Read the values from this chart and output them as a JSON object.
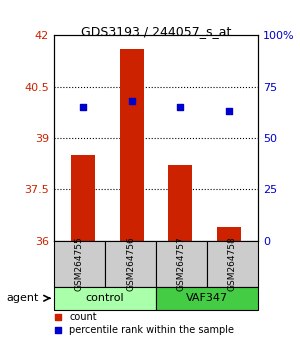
{
  "title": "GDS3193 / 244057_s_at",
  "samples": [
    "GSM264755",
    "GSM264756",
    "GSM264757",
    "GSM264758"
  ],
  "bar_values": [
    38.5,
    41.6,
    38.2,
    36.4
  ],
  "dot_values": [
    65,
    68,
    65,
    63
  ],
  "ylim_left": [
    36,
    42
  ],
  "ylim_right": [
    0,
    100
  ],
  "yticks_left": [
    36,
    37.5,
    39,
    40.5,
    42
  ],
  "yticks_right": [
    0,
    25,
    50,
    75,
    100
  ],
  "ytick_labels_right": [
    "0",
    "25",
    "50",
    "75",
    "100%"
  ],
  "bar_color": "#cc2200",
  "dot_color": "#0000cc",
  "grid_color": "#000000",
  "groups": [
    {
      "label": "control",
      "indices": [
        0,
        1
      ],
      "color": "#aaffaa"
    },
    {
      "label": "VAF347",
      "indices": [
        2,
        3
      ],
      "color": "#44cc44"
    }
  ],
  "agent_label": "agent",
  "legend_count_label": "count",
  "legend_pct_label": "percentile rank within the sample",
  "bar_bottom": 36
}
